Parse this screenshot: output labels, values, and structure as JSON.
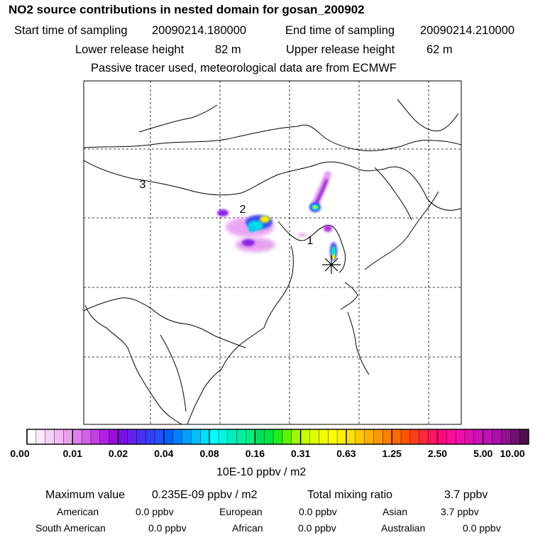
{
  "title": "NO2 source contributions in nested domain for gosan_200902",
  "sampling": {
    "start_label": "Start time of sampling",
    "start_value": "20090214.180000",
    "end_label": "End time of sampling",
    "end_value": "20090214.210000"
  },
  "release": {
    "lower_label": "Lower release height",
    "lower_value": "82 m",
    "upper_label": "Upper release height",
    "upper_value": "62 m"
  },
  "note": "Passive tracer used, meteorological data are from ECMWF",
  "map": {
    "region_labels": [
      "3",
      "2",
      "1"
    ],
    "receptor_marker": "asterisk-icon",
    "colors": {
      "coast": "#000000",
      "grid": "#000000"
    }
  },
  "colorbar": {
    "tick_labels": [
      "0.00",
      "0.01",
      "0.02",
      "0.04",
      "0.08",
      "0.16",
      "0.31",
      "0.63",
      "1.25",
      "2.50",
      "5.00",
      "10.00"
    ],
    "unit": "10E-10 ppbv / m2",
    "colors": [
      [
        "#ffffff",
        "#fbe8fb",
        "#f6d2f7",
        "#f0b9f3",
        "#eaa0ef"
      ],
      [
        "#e07fec",
        "#d45fe9",
        "#c33fe6",
        "#b022e3",
        "#9c0ce0"
      ],
      [
        "#7d10e6",
        "#6620ee",
        "#4a30f4",
        "#3040f8",
        "#2050fa"
      ],
      [
        "#0060ff",
        "#0080ff",
        "#00a0ff",
        "#00c0ff",
        "#00e0ff"
      ],
      [
        "#00ffff",
        "#00f5e0",
        "#00f0c0",
        "#00f0a0",
        "#00f080"
      ],
      [
        "#00e060",
        "#00e640",
        "#20ee20",
        "#60f400",
        "#a0f800"
      ],
      [
        "#c8ff00",
        "#e0ff00",
        "#f0ff00",
        "#ffff00",
        "#fff000"
      ],
      [
        "#ffe000",
        "#ffc800",
        "#ffb000",
        "#ff9800",
        "#ff8000"
      ],
      [
        "#ff6a00",
        "#ff5400",
        "#ff3c1c",
        "#ff2840",
        "#ff1460"
      ],
      [
        "#ff0880",
        "#ff0c98",
        "#f010a8",
        "#e010b0",
        "#d010b8"
      ],
      [
        "#c010b8",
        "#a810a8",
        "#901090",
        "#701070",
        "#501050"
      ]
    ]
  },
  "summary": {
    "max_label": "Maximum value",
    "max_value": "0.235E-09 ppbv / m2",
    "total_label": "Total mixing ratio",
    "total_value": "3.7 ppbv"
  },
  "regions": [
    {
      "name": "American",
      "value": "0.0 ppbv"
    },
    {
      "name": "European",
      "value": "0.0 ppbv"
    },
    {
      "name": "Asian",
      "value": "3.7 ppbv"
    },
    {
      "name": "South American",
      "value": "0.0 ppbv"
    },
    {
      "name": "African",
      "value": "0.0 ppbv"
    },
    {
      "name": "Australian",
      "value": "0.0 ppbv"
    }
  ]
}
